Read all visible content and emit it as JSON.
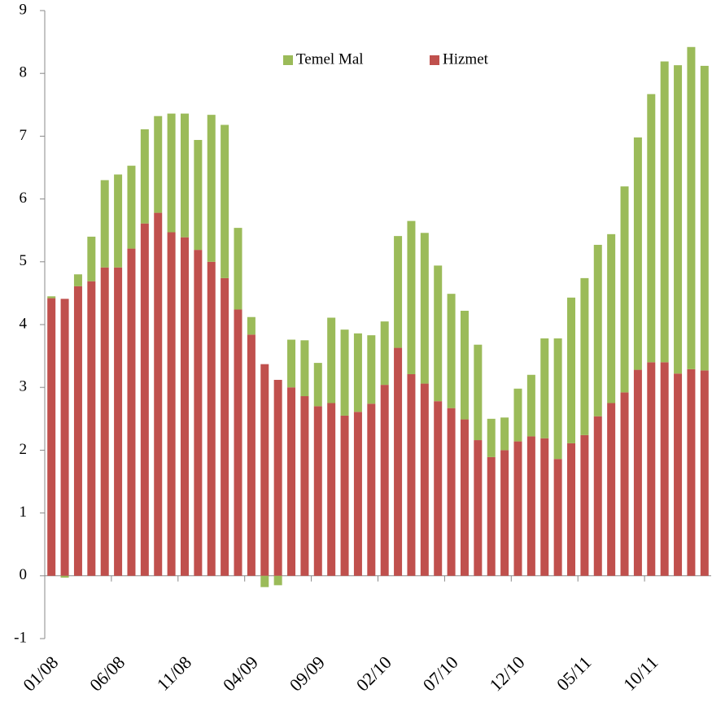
{
  "chart_data": {
    "type": "stacked_bar",
    "categories": [
      "01/08",
      null,
      null,
      null,
      null,
      "06/08",
      null,
      null,
      null,
      null,
      "11/08",
      null,
      null,
      null,
      null,
      "04/09",
      null,
      null,
      null,
      null,
      "09/09",
      null,
      null,
      null,
      null,
      "02/10",
      null,
      null,
      null,
      null,
      "07/10",
      null,
      null,
      null,
      null,
      "12/10",
      null,
      null,
      null,
      null,
      "05/11",
      null,
      null,
      null,
      null,
      "10/11",
      null,
      null,
      null,
      null
    ],
    "series": [
      {
        "name": "Hizmet",
        "color": "#c0504d",
        "values": [
          4.42,
          4.41,
          4.61,
          4.69,
          4.91,
          4.91,
          5.21,
          5.61,
          5.78,
          5.47,
          5.39,
          5.19,
          5.0,
          4.74,
          4.24,
          3.84,
          3.37,
          3.12,
          3.0,
          2.86,
          2.7,
          2.75,
          2.55,
          2.61,
          2.74,
          3.04,
          3.63,
          3.21,
          3.06,
          2.78,
          2.67,
          2.49,
          2.16,
          1.89,
          2.0,
          2.14,
          2.22,
          2.19,
          1.86,
          2.11,
          2.24,
          2.54,
          2.75,
          2.92,
          3.28,
          3.4,
          3.4,
          3.22,
          3.29,
          3.27
        ]
      },
      {
        "name": "Temel Mal",
        "color": "#9bbb59",
        "values": [
          0.03,
          -0.03,
          0.19,
          0.71,
          1.39,
          1.48,
          1.32,
          1.5,
          1.54,
          1.89,
          1.97,
          1.75,
          2.34,
          2.44,
          1.3,
          0.28,
          -0.18,
          -0.15,
          0.76,
          0.89,
          0.69,
          1.36,
          1.37,
          1.25,
          1.09,
          1.01,
          1.78,
          2.44,
          2.4,
          2.16,
          1.82,
          1.73,
          1.52,
          0.61,
          0.52,
          0.84,
          0.98,
          1.59,
          1.92,
          2.32,
          2.5,
          2.73,
          2.69,
          3.28,
          3.7,
          4.27,
          4.79,
          4.91,
          5.13,
          4.85
        ]
      }
    ],
    "ylim": [
      -1,
      9
    ],
    "yticks": [
      -1,
      0,
      1,
      2,
      3,
      4,
      5,
      6,
      7,
      8,
      9
    ],
    "legend": "top"
  }
}
